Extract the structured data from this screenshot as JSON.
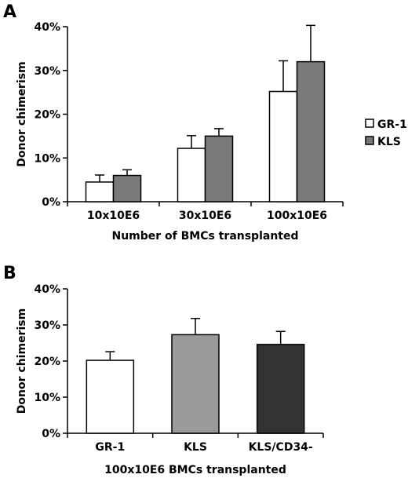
{
  "chart_data": [
    {
      "panel": "A",
      "type": "bar",
      "categories": [
        "10x10E6",
        "30x10E6",
        "100x10E6"
      ],
      "series": [
        {
          "name": "GR-1",
          "color": "#ffffff",
          "values": [
            4.5,
            12.2,
            25.2
          ],
          "errors": [
            1.6,
            2.9,
            7.0
          ]
        },
        {
          "name": "KLS",
          "color": "#7a7a7a",
          "values": [
            6.0,
            15.0,
            32.0
          ],
          "errors": [
            1.3,
            1.7,
            8.3
          ]
        }
      ],
      "yticks": [
        "0%",
        "10%",
        "20%",
        "30%",
        "40%"
      ],
      "ylim": [
        0,
        40
      ],
      "xlabel": "Number of BMCs transplanted",
      "ylabel": "Donor chimerism",
      "legend": "right",
      "grid": false
    },
    {
      "panel": "B",
      "type": "bar",
      "categories": [
        "GR-1",
        "KLS",
        "KLS/CD34-"
      ],
      "values": [
        20.2,
        27.3,
        24.6
      ],
      "errors": [
        2.4,
        4.5,
        3.6
      ],
      "colors": [
        "#ffffff",
        "#9a9a9a",
        "#333333"
      ],
      "yticks": [
        "0%",
        "10%",
        "20%",
        "30%",
        "40%"
      ],
      "ylim": [
        0,
        40
      ],
      "xlabel": "100x10E6 BMCs transplanted",
      "ylabel": "Donor chimerism",
      "grid": false
    }
  ]
}
